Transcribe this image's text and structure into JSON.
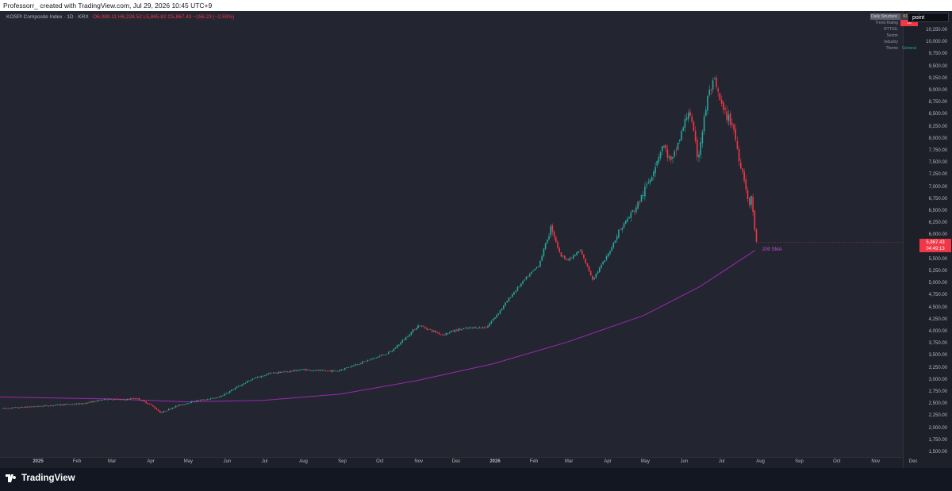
{
  "header": {
    "credit": "Professorr_ created with TradingView.com, Jul 29, 2026 10:45 UTC+9"
  },
  "chart_data": {
    "type": "candlestick",
    "symbol": "KOSPI Composite Index · 1D · KRX",
    "ohlc": {
      "open": "O6,089.11",
      "high": "H6,228.52",
      "low": "L5,865.82",
      "close": "C5,867.43",
      "change": "−156.23 (−2.59%)"
    },
    "axis_mode": "point",
    "last_price": "5,867.43",
    "countdown": "04:49:13",
    "indicator_label": "200 SMA",
    "y_ticks": [
      "10,250.00",
      "10,000.00",
      "9,750.00",
      "9,500.00",
      "9,250.00",
      "9,000.00",
      "8,750.00",
      "8,500.00",
      "8,250.00",
      "8,000.00",
      "7,750.00",
      "7,500.00",
      "7,250.00",
      "7,000.00",
      "6,750.00",
      "6,500.00",
      "6,250.00",
      "6,000.00",
      "5,750.00",
      "5,500.00",
      "5,250.00",
      "5,000.00",
      "4,750.00",
      "4,500.00",
      "4,250.00",
      "4,000.00",
      "3,750.00",
      "3,500.00",
      "3,250.00",
      "3,000.00",
      "2,750.00",
      "2,500.00",
      "2,250.00",
      "2,000.00",
      "1,750.00",
      "1,500.00"
    ],
    "x_ticks": [
      "2025",
      "Feb",
      "Mar",
      "Apr",
      "May",
      "Jun",
      "Jul",
      "Aug",
      "Sep",
      "Oct",
      "Nov",
      "Dec",
      "2026",
      "Feb",
      "Mar",
      "Apr",
      "May",
      "Jun",
      "Jul",
      "Aug",
      "Sep",
      "Oct",
      "Nov",
      "Dec"
    ],
    "price_path": [
      [
        "2025-01-01",
        2420
      ],
      [
        "2025-01-20",
        2500
      ],
      [
        "2025-02-05",
        2520
      ],
      [
        "2025-02-25",
        2620
      ],
      [
        "2025-03-10",
        2600
      ],
      [
        "2025-03-20",
        2640
      ],
      [
        "2025-04-01",
        2500
      ],
      [
        "2025-04-09",
        2330
      ],
      [
        "2025-04-20",
        2460
      ],
      [
        "2025-05-05",
        2570
      ],
      [
        "2025-05-25",
        2650
      ],
      [
        "2025-06-10",
        2880
      ],
      [
        "2025-06-20",
        3020
      ],
      [
        "2025-07-05",
        3150
      ],
      [
        "2025-07-20",
        3190
      ],
      [
        "2025-08-01",
        3230
      ],
      [
        "2025-08-15",
        3200
      ],
      [
        "2025-08-28",
        3200
      ],
      [
        "2025-09-10",
        3320
      ],
      [
        "2025-09-25",
        3450
      ],
      [
        "2025-10-10",
        3600
      ],
      [
        "2025-10-20",
        3850
      ],
      [
        "2025-11-01",
        4150
      ],
      [
        "2025-11-10",
        4050
      ],
      [
        "2025-11-20",
        3950
      ],
      [
        "2025-12-01",
        4050
      ],
      [
        "2025-12-15",
        4100
      ],
      [
        "2025-12-25",
        4100
      ],
      [
        "2026-01-05",
        4450
      ],
      [
        "2026-01-15",
        4800
      ],
      [
        "2026-01-25",
        5100
      ],
      [
        "2026-02-05",
        5400
      ],
      [
        "2026-02-15",
        6200
      ],
      [
        "2026-02-22",
        5600
      ],
      [
        "2026-03-01",
        5500
      ],
      [
        "2026-03-10",
        5700
      ],
      [
        "2026-03-20",
        5100
      ],
      [
        "2026-04-01",
        5600
      ],
      [
        "2026-04-10",
        6100
      ],
      [
        "2026-04-25",
        6650
      ],
      [
        "2026-05-05",
        7200
      ],
      [
        "2026-05-15",
        7900
      ],
      [
        "2026-05-22",
        7500
      ],
      [
        "2026-06-01",
        8300
      ],
      [
        "2026-06-05",
        8650
      ],
      [
        "2026-06-12",
        7600
      ],
      [
        "2026-06-20",
        8900
      ],
      [
        "2026-06-25",
        9200
      ],
      [
        "2026-07-02",
        8600
      ],
      [
        "2026-07-10",
        8300
      ],
      [
        "2026-07-15",
        7600
      ],
      [
        "2026-07-20",
        7100
      ],
      [
        "2026-07-23",
        6550
      ],
      [
        "2026-07-25",
        6900
      ],
      [
        "2026-07-27",
        6150
      ],
      [
        "2026-07-29",
        5867
      ]
    ],
    "ma_path": [
      [
        "2025-01-01",
        2660
      ],
      [
        "2025-03-01",
        2620
      ],
      [
        "2025-05-01",
        2560
      ],
      [
        "2025-07-01",
        2590
      ],
      [
        "2025-09-01",
        2720
      ],
      [
        "2025-11-01",
        3000
      ],
      [
        "2026-01-01",
        3350
      ],
      [
        "2026-03-01",
        3800
      ],
      [
        "2026-05-01",
        4350
      ],
      [
        "2026-06-15",
        4950
      ],
      [
        "2026-07-29",
        5700
      ]
    ]
  },
  "info_table": [
    {
      "key": "Daily Structure",
      "value": "KOSPI"
    },
    {
      "key": "Trend Rating",
      "value": "20"
    },
    {
      "key": "RTT/GL",
      "value": ""
    },
    {
      "key": "Sector",
      "value": ""
    },
    {
      "key": "Industry",
      "value": ""
    },
    {
      "key": "Theme",
      "value": "General"
    }
  ],
  "footer": {
    "brand": "TradingView"
  },
  "colors": {
    "up": "#26a69a",
    "down": "#f23645",
    "ma": "#9c27b0",
    "background": "#232631"
  }
}
